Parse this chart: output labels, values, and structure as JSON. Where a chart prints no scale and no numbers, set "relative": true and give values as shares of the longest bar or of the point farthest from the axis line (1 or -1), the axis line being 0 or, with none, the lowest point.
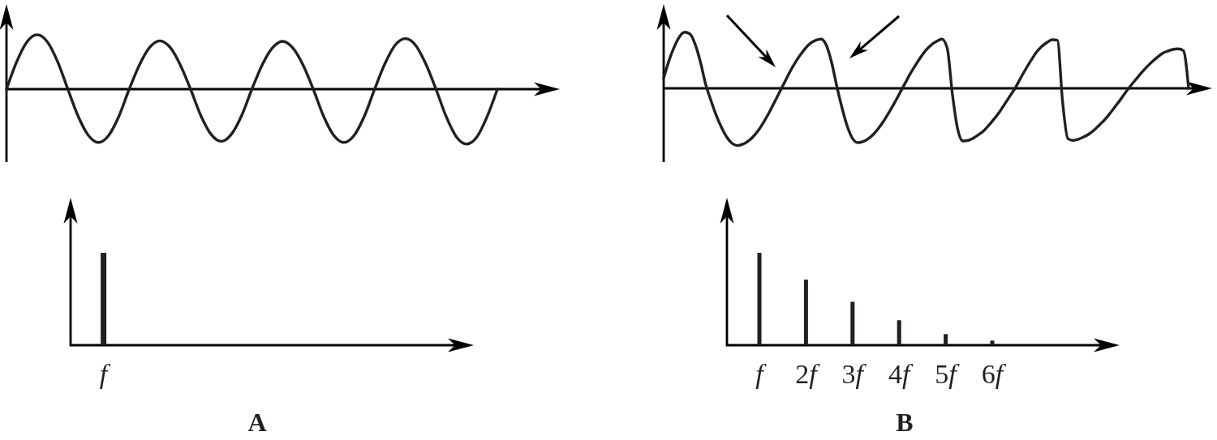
{
  "chart_data": [
    {
      "type": "line",
      "relative": true,
      "categories": [
        null,
        null,
        null,
        null,
        null,
        null,
        null,
        null,
        null,
        null,
        null,
        null,
        null,
        null,
        null,
        null,
        null,
        null,
        null,
        null,
        null,
        null,
        null,
        null,
        null,
        null,
        null,
        null,
        null,
        null,
        null,
        null,
        null,
        null,
        null,
        null,
        null,
        null,
        null,
        null,
        null,
        null,
        null,
        null,
        null,
        null,
        null,
        null,
        null
      ],
      "series": [
        {
          "color": "#231f20",
          "values": [
            0,
            0.5,
            0.86,
            0.99,
            0.86,
            0.5,
            0,
            -0.49,
            -0.84,
            -0.97,
            -0.84,
            -0.49,
            0,
            0.44,
            0.76,
            0.88,
            0.76,
            0.44,
            0,
            -0.48,
            -0.82,
            -0.95,
            -0.82,
            -0.48,
            0,
            0.44,
            0.75,
            0.87,
            0.75,
            0.44,
            0,
            -0.49,
            -0.84,
            -0.97,
            -0.84,
            -0.49,
            0,
            0.46,
            0.8,
            0.92,
            0.8,
            0.46,
            0,
            -0.5,
            -0.87,
            -1,
            -0.87,
            -0.5,
            0
          ]
        }
      ]
    },
    {
      "type": "line",
      "relative": true,
      "categories": [
        null,
        null,
        null,
        null,
        null,
        null,
        null,
        null,
        null,
        null,
        null,
        null,
        null,
        null,
        null,
        null,
        null,
        null,
        null,
        null,
        null,
        null,
        null,
        null,
        null,
        null,
        null,
        null,
        null,
        null,
        null,
        null,
        null,
        null,
        null,
        null,
        null,
        null,
        null,
        null,
        null,
        null,
        null,
        null,
        null,
        null,
        null,
        null,
        null,
        null,
        null,
        null,
        null,
        null,
        null,
        null,
        null,
        null,
        null,
        null,
        null,
        null,
        null,
        null,
        null,
        null,
        null,
        null,
        null,
        null,
        null,
        null,
        null,
        null,
        null,
        null,
        null,
        null,
        null,
        null,
        null,
        null,
        null,
        null,
        null,
        null,
        null,
        null,
        null,
        null,
        null,
        null,
        null,
        null,
        null,
        null,
        null,
        null,
        null,
        null,
        null
      ],
      "series": [
        {
          "color": "#231f20",
          "values": [
            0.18,
            0.48,
            0.72,
            0.9,
            0.98,
            0.95,
            0.77,
            0.46,
            0.07,
            -0.21,
            -0.47,
            -0.68,
            -0.85,
            -0.96,
            -1,
            -0.98,
            -0.93,
            -0.85,
            -0.74,
            -0.6,
            -0.44,
            -0.26,
            -0.08,
            0.1,
            0.28,
            0.44,
            0.58,
            0.7,
            0.79,
            0.84,
            0.86,
            0.75,
            0.45,
            0.03,
            -0.35,
            -0.67,
            -0.88,
            -0.95,
            -0.93,
            -0.88,
            -0.8,
            -0.69,
            -0.56,
            -0.41,
            -0.25,
            -0.08,
            0.09,
            0.26,
            0.41,
            0.55,
            0.67,
            0.76,
            0.82,
            0.86,
            0.71,
            -0.1,
            -0.71,
            -0.92,
            -0.91,
            -0.87,
            -0.81,
            -0.74,
            -0.64,
            -0.53,
            -0.41,
            -0.27,
            -0.13,
            0.01,
            0.18,
            0.34,
            0.49,
            0.63,
            0.73,
            0.8,
            0.85,
            0.84,
            -0.24,
            -0.88,
            -0.91,
            -0.89,
            -0.85,
            -0.8,
            -0.73,
            -0.64,
            -0.55,
            -0.44,
            -0.32,
            -0.2,
            -0.07,
            0.05,
            0.16,
            0.27,
            0.37,
            0.46,
            0.54,
            0.61,
            0.65,
            0.68,
            0.69,
            0.66,
            0
          ]
        }
      ]
    },
    {
      "type": "bar",
      "relative": true,
      "categories": [
        "f"
      ],
      "values": [
        1
      ],
      "color": "#231f20",
      "annotations": [
        "A"
      ]
    },
    {
      "type": "bar",
      "relative": true,
      "categories": [
        "f",
        "2f",
        "3f",
        "4f",
        "5f",
        "6f"
      ],
      "values": [
        1,
        0.71,
        0.47,
        0.27,
        0.12,
        0.05
      ],
      "color": "#231f20",
      "annotations": [
        "B"
      ]
    }
  ]
}
